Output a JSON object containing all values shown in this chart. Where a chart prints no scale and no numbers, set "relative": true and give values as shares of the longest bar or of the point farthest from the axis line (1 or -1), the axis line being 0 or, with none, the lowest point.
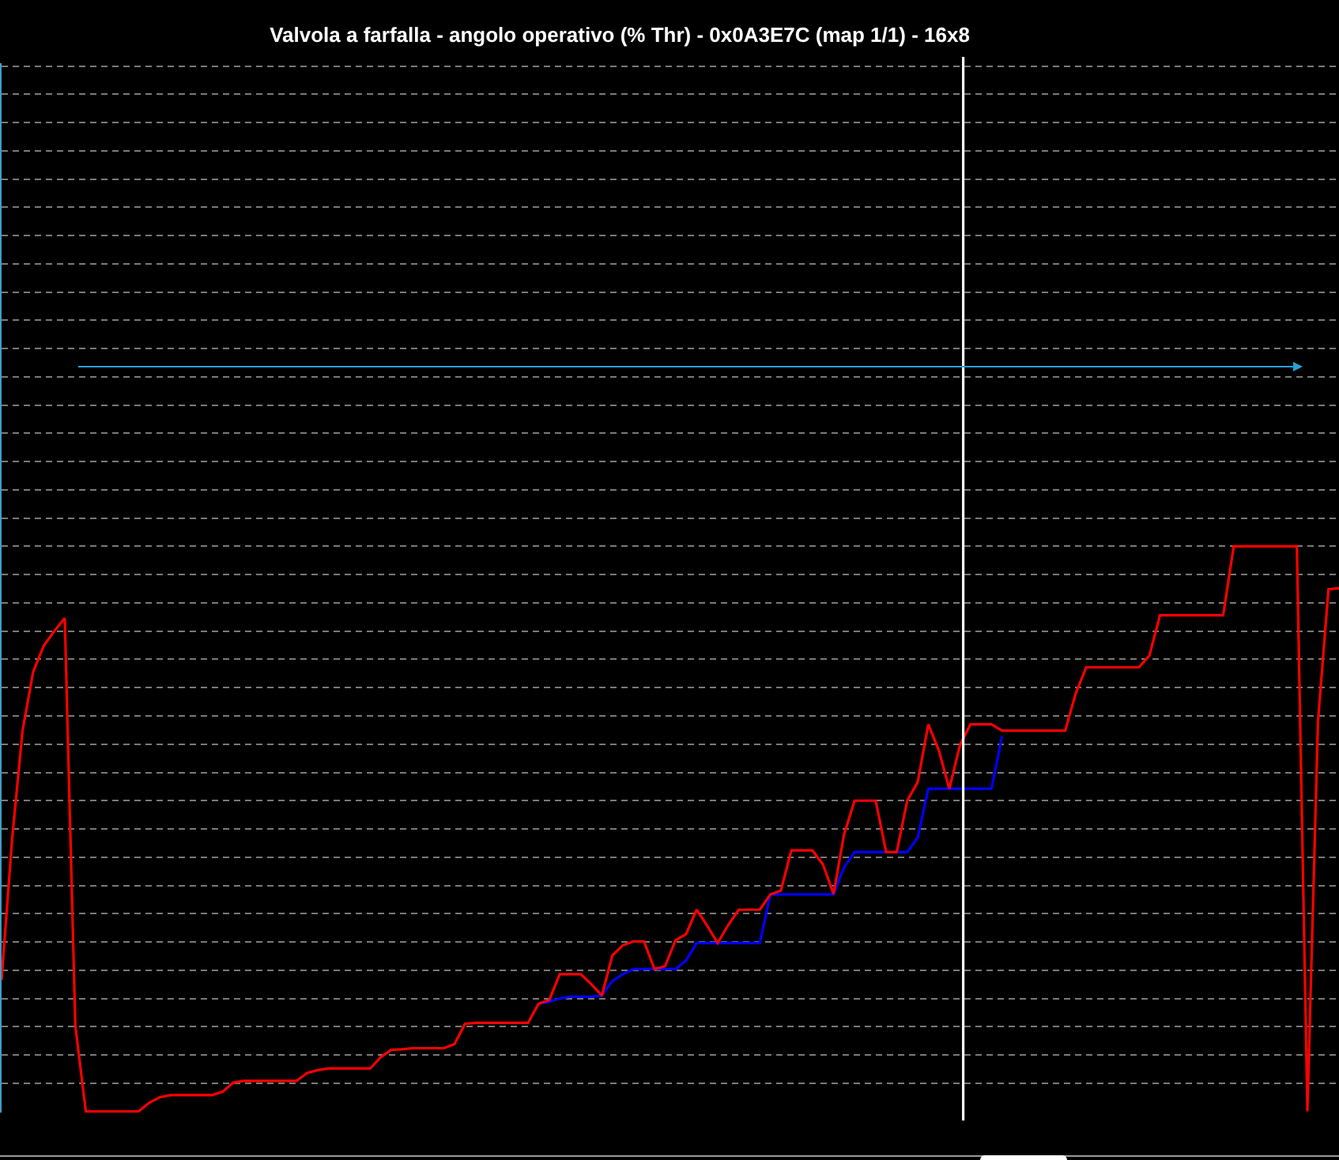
{
  "chart_data": {
    "type": "line",
    "title": "Valvola a farfalla - angolo operativo (% Thr) - 0x0A3E7C (map 1/1) - 16x8",
    "categories": [
      null,
      null,
      null,
      null,
      null,
      null,
      null,
      null,
      null,
      null,
      null,
      null,
      null,
      null,
      null,
      null,
      null,
      null,
      null,
      null,
      null,
      null,
      null,
      null,
      null,
      null,
      null,
      null,
      null,
      null,
      null,
      null,
      null,
      null,
      null,
      null,
      null,
      null,
      null,
      null,
      null,
      null,
      null,
      null,
      null,
      null,
      null,
      null,
      null,
      null,
      null,
      null,
      null,
      null,
      null,
      null,
      null,
      null,
      null,
      null,
      null,
      null,
      null,
      null,
      null,
      null,
      null,
      null,
      null,
      null,
      null,
      null,
      null,
      null,
      null,
      null,
      null,
      null,
      null,
      null,
      null,
      null,
      null,
      null,
      null,
      null,
      null,
      null,
      null,
      null,
      null,
      null,
      null,
      null,
      null,
      null,
      null,
      null,
      null,
      null,
      null,
      null,
      null,
      null,
      null,
      null,
      null,
      null,
      null,
      null,
      null,
      null,
      null,
      null,
      null,
      null,
      null,
      null,
      null,
      null,
      null,
      null,
      null,
      null,
      null,
      null,
      null,
      null
    ],
    "series": [
      {
        "color": "#ff0000",
        "values": [
          0.233,
          0.482,
          0.675,
          0.778,
          0.824,
          0.85,
          0.873,
          0.152,
          0,
          0,
          0,
          0,
          0,
          0,
          0.015,
          0.025,
          0.029,
          0.029,
          0.029,
          0.029,
          0.029,
          0.035,
          0.051,
          0.054,
          0.054,
          0.054,
          0.054,
          0.054,
          0.054,
          0.068,
          0.073,
          0.076,
          0.076,
          0.076,
          0.076,
          0.076,
          0.096,
          0.109,
          0.11,
          0.112,
          0.112,
          0.112,
          0.112,
          0.119,
          0.155,
          0.157,
          0.157,
          0.157,
          0.157,
          0.157,
          0.157,
          0.191,
          0.197,
          0.243,
          0.243,
          0.243,
          0.225,
          0.205,
          0.276,
          0.294,
          0.301,
          0.301,
          0.252,
          0.257,
          0.303,
          0.314,
          0.357,
          0.329,
          0.298,
          0.33,
          0.357,
          0.357,
          0.357,
          0.384,
          0.391,
          0.462,
          0.462,
          0.462,
          0.437,
          0.385,
          0.49,
          0.55,
          0.55,
          0.55,
          0.459,
          0.459,
          0.55,
          0.583,
          0.685,
          0.639,
          0.571,
          0.648,
          0.685,
          0.685,
          0.685,
          0.674,
          0.674,
          0.674,
          0.674,
          0.674,
          0.674,
          0.674,
          0.74,
          0.786,
          0.786,
          0.786,
          0.786,
          0.786,
          0.786,
          0.807,
          0.878,
          0.878,
          0.878,
          0.878,
          0.878,
          0.878,
          0.878,
          1,
          1,
          1,
          1,
          1,
          1,
          1,
          0,
          0.689,
          0.924,
          0.926
        ]
      },
      {
        "color": "#0000ff",
        "values": [
          null,
          null,
          null,
          null,
          null,
          null,
          null,
          null,
          null,
          null,
          null,
          null,
          null,
          null,
          null,
          null,
          null,
          null,
          null,
          null,
          null,
          null,
          null,
          null,
          null,
          null,
          null,
          null,
          null,
          null,
          null,
          null,
          null,
          null,
          null,
          null,
          null,
          null,
          null,
          null,
          null,
          null,
          null,
          null,
          null,
          null,
          null,
          null,
          null,
          null,
          null,
          0.191,
          0.194,
          0.2,
          0.203,
          0.203,
          0.203,
          0.205,
          0.231,
          0.243,
          0.252,
          0.252,
          0.252,
          0.252,
          0.252,
          0.267,
          0.298,
          0.298,
          0.298,
          0.298,
          0.298,
          0.298,
          0.298,
          0.384,
          0.384,
          0.384,
          0.384,
          0.384,
          0.384,
          0.384,
          0.432,
          0.459,
          0.459,
          0.459,
          0.459,
          0.459,
          0.459,
          0.485,
          0.571,
          0.571,
          0.571,
          0.571,
          0.571,
          0.571,
          0.571,
          0.664,
          null,
          null,
          null,
          null,
          null,
          null,
          null,
          null,
          null,
          null,
          null,
          null,
          null,
          null,
          null,
          null,
          null,
          null,
          null,
          null,
          null,
          null,
          null,
          null,
          null,
          null,
          null,
          null,
          null,
          null,
          null,
          null
        ]
      }
    ],
    "relative": true,
    "grid": "y"
  }
}
